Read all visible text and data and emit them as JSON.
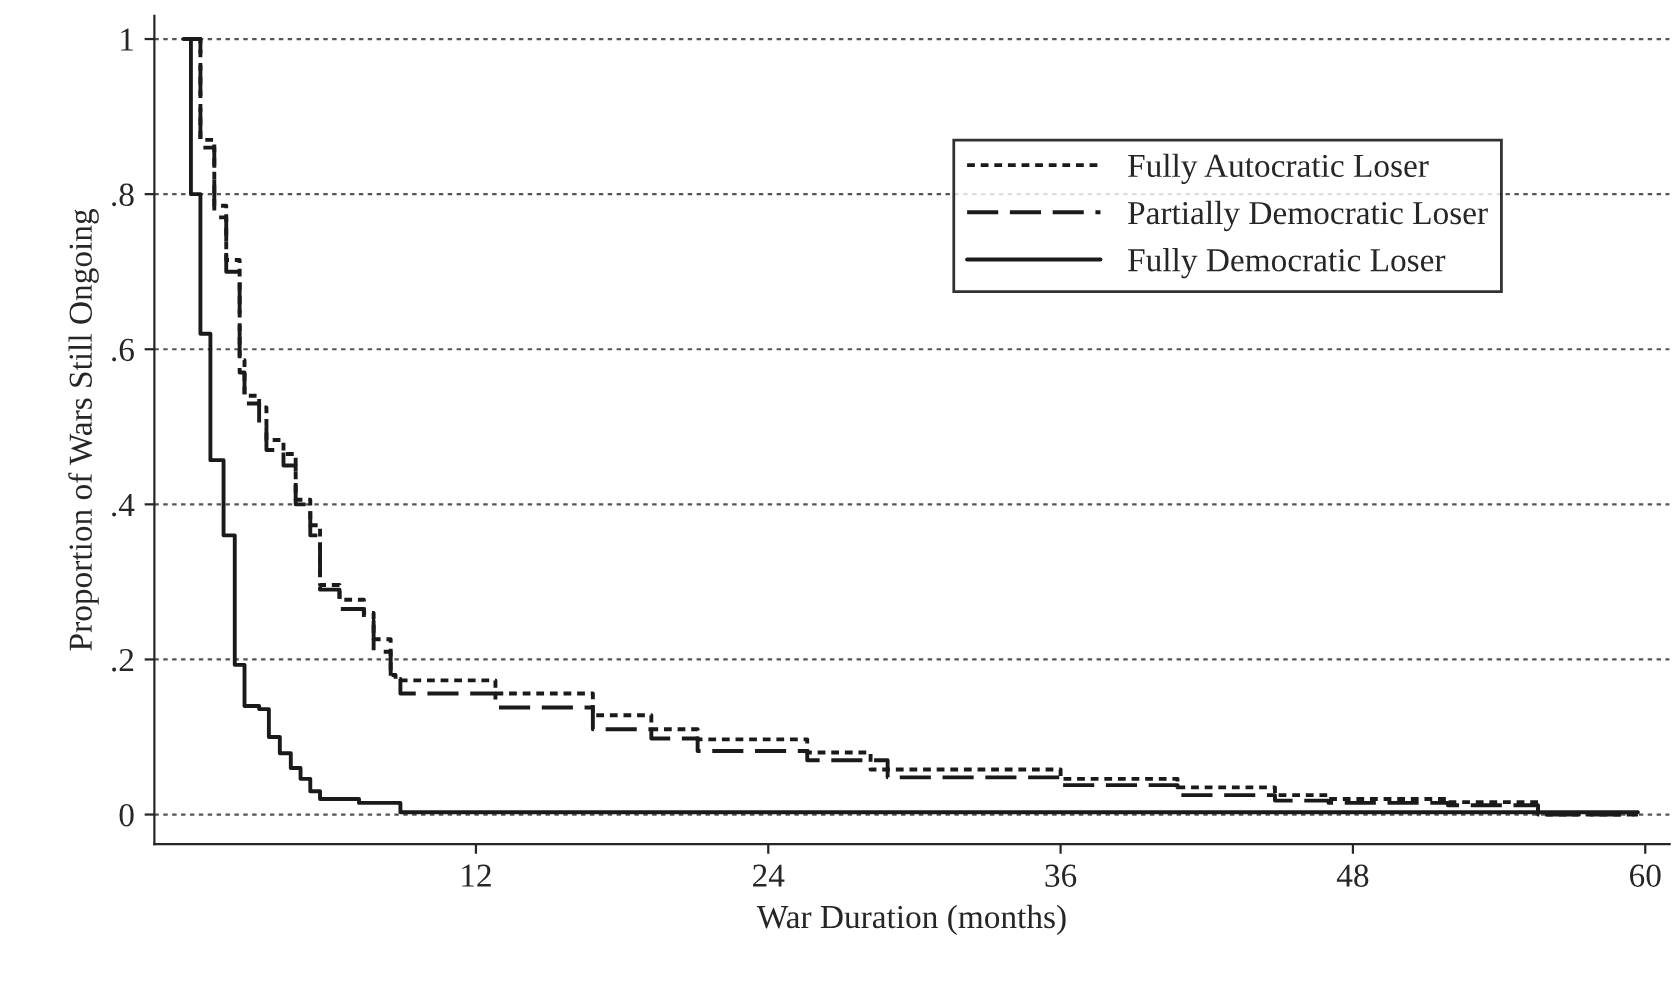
{
  "chart_data": {
    "type": "step",
    "xlabel": "War Duration (months)",
    "ylabel": "Proportion of Wars Still Ongoing",
    "xlim": [
      -1.2,
      61
    ],
    "ylim": [
      -0.038,
      1.03
    ],
    "xticks": [
      12,
      24,
      36,
      48,
      60
    ],
    "yticks": [
      {
        "value": 0,
        "label": "0"
      },
      {
        "value": 0.2,
        "label": ".2"
      },
      {
        "value": 0.4,
        "label": ".4"
      },
      {
        "value": 0.6,
        "label": ".6"
      },
      {
        "value": 0.8,
        "label": ".8"
      },
      {
        "value": 1,
        "label": "1"
      }
    ],
    "grid": "y",
    "legend": "top right",
    "series": [
      {
        "name": "Fully Autocratic Loser",
        "color": "#1a1a1a",
        "line_style": "dotted",
        "x": [
          0,
          0.69,
          1.26,
          1.75,
          2.3,
          2.5,
          3.1,
          3.4,
          4.1,
          4.6,
          5.2,
          5.6,
          6.4,
          7.4,
          7.8,
          8.5,
          8.7,
          12.8,
          16.8,
          19.2,
          21.1,
          25.6,
          28.2,
          36,
          40.8,
          44.8,
          47,
          51.9,
          55.6,
          59.7
        ],
        "values": [
          1,
          0.87,
          0.785,
          0.715,
          0.586,
          0.54,
          0.525,
          0.483,
          0.465,
          0.406,
          0.373,
          0.296,
          0.277,
          0.26,
          0.226,
          0.18,
          0.173,
          0.156,
          0.128,
          0.11,
          0.097,
          0.08,
          0.058,
          0.046,
          0.035,
          0.025,
          0.02,
          0.016,
          0,
          0
        ]
      },
      {
        "name": "Partially Democratic Loser",
        "color": "#1a1a1a",
        "line_style": "dashed",
        "x": [
          0,
          0.69,
          1.26,
          1.75,
          2.3,
          2.5,
          3.1,
          3.4,
          4.1,
          4.6,
          5.2,
          5.6,
          6.4,
          7.4,
          7.8,
          8.5,
          8.9,
          12.8,
          16.8,
          19.2,
          21.1,
          25.6,
          28.9,
          36,
          40.8,
          44.8,
          47,
          51.9,
          55.6,
          59.7
        ],
        "values": [
          1,
          0.86,
          0.77,
          0.7,
          0.57,
          0.53,
          0.5,
          0.47,
          0.45,
          0.4,
          0.36,
          0.29,
          0.265,
          0.25,
          0.21,
          0.175,
          0.156,
          0.138,
          0.11,
          0.098,
          0.082,
          0.07,
          0.048,
          0.038,
          0.025,
          0.018,
          0.015,
          0.012,
          0,
          0
        ]
      },
      {
        "name": "Fully Democratic Loser",
        "color": "#1a1a1a",
        "line_style": "solid",
        "x": [
          0,
          0.3,
          0.69,
          1.1,
          1.64,
          2.1,
          2.5,
          3.1,
          3.5,
          3.95,
          4.4,
          4.8,
          5.2,
          5.6,
          7.2,
          8.9,
          59.7
        ],
        "values": [
          1,
          0.8,
          0.62,
          0.457,
          0.36,
          0.193,
          0.14,
          0.136,
          0.1,
          0.079,
          0.06,
          0.046,
          0.03,
          0.02,
          0.015,
          0.003,
          0.003
        ]
      }
    ]
  }
}
